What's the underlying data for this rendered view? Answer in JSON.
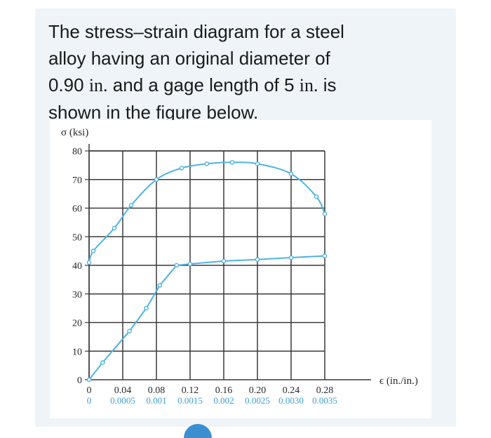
{
  "problem": {
    "line1": "The stress–strain diagram for a steel",
    "line2": "alloy having an original diameter of",
    "line3a": "0.90 ",
    "line3unit": "in.",
    "line3b": " and a gage length of 5 ",
    "line3unit2": "in.",
    "line3c": " is",
    "line4": "shown in the figure below."
  },
  "colors": {
    "curve": "#4fb3e3",
    "grid": "#3a3a3a",
    "bottom_ticks": "#3a9fd6"
  },
  "chart_data": {
    "type": "line",
    "ylabel": "σ (ksi)",
    "xlabel": "ϵ (in./in.)",
    "y_ticks": [
      "0",
      "10",
      "20",
      "30",
      "40",
      "50",
      "60",
      "70",
      "80"
    ],
    "x_ticks_top": [
      "0",
      "0.04",
      "0.08",
      "0.12",
      "0.16",
      "0.20",
      "0.24",
      "0.28"
    ],
    "x_ticks_bottom": [
      "0",
      "0.0005",
      "0.001",
      "0.0015",
      "0.002",
      "0.0025",
      "0.0030",
      "0.0035"
    ],
    "ylim": [
      0,
      80
    ],
    "xlim_top": [
      0,
      0.28
    ],
    "xlim_bottom": [
      0,
      0.0035
    ],
    "grid": true,
    "series": [
      {
        "axis": "bottom",
        "x": [
          0,
          0.0002,
          0.0006,
          0.00085,
          0.00105,
          0.0013,
          0.0015,
          0.002,
          0.0025,
          0.003,
          0.0035
        ],
        "y": [
          0,
          6,
          17,
          25,
          33,
          40,
          40.5,
          41.5,
          42,
          42.7,
          43.3
        ]
      },
      {
        "axis": "top",
        "x": [
          0,
          0.005,
          0.03,
          0.05,
          0.08,
          0.11,
          0.14,
          0.17,
          0.2,
          0.24,
          0.27,
          0.28
        ],
        "y": [
          41,
          45,
          53,
          61,
          70,
          74,
          75.5,
          76,
          75.5,
          72,
          64,
          58
        ]
      }
    ]
  }
}
